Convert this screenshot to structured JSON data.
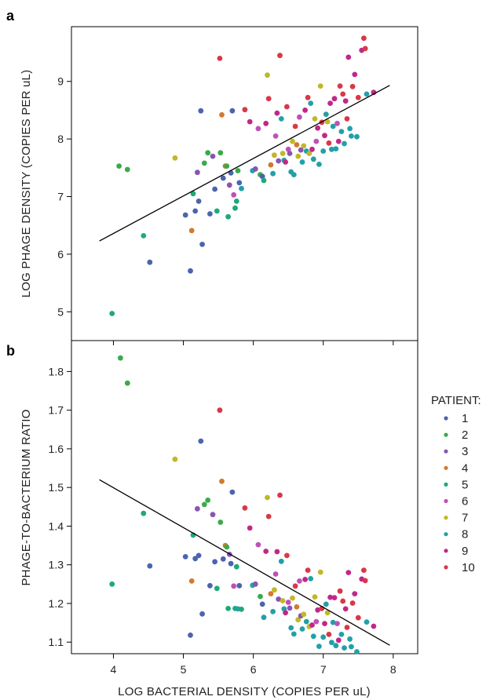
{
  "figure": {
    "panel_a_letter": "a",
    "panel_b_letter": "b",
    "x_axis_title": "LOG BACTERIAL DENSITY (COPIES PER uL)",
    "legend_title": "PATIENT:"
  },
  "patients": [
    {
      "label": "1",
      "color": "#4b64b0"
    },
    {
      "label": "2",
      "color": "#3aaa4a"
    },
    {
      "label": "3",
      "color": "#8a55b0"
    },
    {
      "label": "4",
      "color": "#d07a30"
    },
    {
      "label": "5",
      "color": "#1eaa78"
    },
    {
      "label": "6",
      "color": "#c050b8"
    },
    {
      "label": "7",
      "color": "#c0b828"
    },
    {
      "label": "8",
      "color": "#22a0a8"
    },
    {
      "label": "9",
      "color": "#c02888"
    },
    {
      "label": "10",
      "color": "#d83848"
    }
  ],
  "chart_data": [
    {
      "panel": "a",
      "type": "scatter",
      "ylabel": "LOG PHAGE DENSITY (COPIES PER uL)",
      "xlim": [
        3.4,
        8.35
      ],
      "ylim": [
        4.5,
        9.95
      ],
      "xticks": [
        4,
        5,
        6,
        7,
        8
      ],
      "yticks": [
        5,
        6,
        7,
        8,
        9
      ],
      "show_x_tick_labels": false,
      "trendline": [
        [
          3.8,
          6.23
        ],
        [
          7.95,
          8.93
        ]
      ],
      "points": [
        [
          3.98,
          4.97,
          5
        ],
        [
          4.08,
          7.53,
          2
        ],
        [
          4.2,
          7.47,
          2
        ],
        [
          4.43,
          6.32,
          5
        ],
        [
          4.52,
          5.86,
          1
        ],
        [
          4.88,
          7.67,
          7
        ],
        [
          5.03,
          6.68,
          1
        ],
        [
          5.1,
          5.71,
          1
        ],
        [
          5.12,
          6.41,
          4
        ],
        [
          5.14,
          7.05,
          5
        ],
        [
          5.17,
          6.75,
          1
        ],
        [
          5.2,
          7.42,
          3
        ],
        [
          5.22,
          6.92,
          1
        ],
        [
          5.25,
          8.49,
          1
        ],
        [
          5.27,
          6.17,
          1
        ],
        [
          5.3,
          7.58,
          2
        ],
        [
          5.35,
          7.76,
          2
        ],
        [
          5.38,
          6.7,
          1
        ],
        [
          5.42,
          7.7,
          3
        ],
        [
          5.45,
          7.13,
          1
        ],
        [
          5.48,
          6.75,
          5
        ],
        [
          5.52,
          9.4,
          10
        ],
        [
          5.53,
          7.76,
          2
        ],
        [
          5.55,
          8.42,
          4
        ],
        [
          5.57,
          7.32,
          1
        ],
        [
          5.6,
          7.53,
          4
        ],
        [
          5.62,
          7.53,
          2
        ],
        [
          5.64,
          6.65,
          5
        ],
        [
          5.66,
          7.2,
          3
        ],
        [
          5.68,
          7.41,
          1
        ],
        [
          5.7,
          8.49,
          1
        ],
        [
          5.72,
          7.03,
          6
        ],
        [
          5.74,
          6.8,
          5
        ],
        [
          5.76,
          6.92,
          5
        ],
        [
          5.78,
          7.45,
          2
        ],
        [
          5.8,
          7.24,
          1
        ],
        [
          5.83,
          7.14,
          8
        ],
        [
          5.88,
          8.51,
          10
        ],
        [
          5.95,
          8.3,
          9
        ],
        [
          5.99,
          7.45,
          8
        ],
        [
          6.03,
          7.48,
          3
        ],
        [
          6.07,
          8.18,
          6
        ],
        [
          6.1,
          7.38,
          2
        ],
        [
          6.13,
          7.35,
          1
        ],
        [
          6.15,
          7.28,
          5
        ],
        [
          6.18,
          8.27,
          9
        ],
        [
          6.2,
          9.11,
          7
        ],
        [
          6.22,
          8.7,
          10
        ],
        [
          6.25,
          7.55,
          4
        ],
        [
          6.28,
          7.4,
          8
        ],
        [
          6.3,
          7.72,
          7
        ],
        [
          6.32,
          8.05,
          6
        ],
        [
          6.34,
          8.45,
          9
        ],
        [
          6.36,
          7.62,
          3
        ],
        [
          6.38,
          9.45,
          10
        ],
        [
          6.4,
          8.35,
          8
        ],
        [
          6.42,
          7.75,
          7
        ],
        [
          6.44,
          7.63,
          8
        ],
        [
          6.46,
          7.6,
          9
        ],
        [
          6.48,
          8.56,
          10
        ],
        [
          6.5,
          7.82,
          6
        ],
        [
          6.52,
          7.75,
          3
        ],
        [
          6.54,
          7.43,
          8
        ],
        [
          6.56,
          7.96,
          7
        ],
        [
          6.58,
          7.38,
          8
        ],
        [
          6.6,
          8.22,
          10
        ],
        [
          6.62,
          7.9,
          4
        ],
        [
          6.64,
          7.7,
          7
        ],
        [
          6.66,
          8.38,
          6
        ],
        [
          6.68,
          7.81,
          3
        ],
        [
          6.7,
          7.6,
          8
        ],
        [
          6.72,
          7.88,
          7
        ],
        [
          6.74,
          8.5,
          9
        ],
        [
          6.76,
          7.79,
          8
        ],
        [
          6.78,
          8.72,
          10
        ],
        [
          6.8,
          7.75,
          7
        ],
        [
          6.82,
          8.62,
          8
        ],
        [
          6.84,
          7.82,
          9
        ],
        [
          6.86,
          7.65,
          8
        ],
        [
          6.88,
          8.35,
          7
        ],
        [
          6.9,
          7.96,
          6
        ],
        [
          6.92,
          8.19,
          9
        ],
        [
          6.94,
          7.56,
          8
        ],
        [
          6.96,
          8.92,
          7
        ],
        [
          6.98,
          8.29,
          10
        ],
        [
          7.0,
          7.79,
          8
        ],
        [
          7.02,
          8.06,
          9
        ],
        [
          7.04,
          8.43,
          8
        ],
        [
          7.06,
          8.3,
          7
        ],
        [
          7.08,
          7.93,
          10
        ],
        [
          7.1,
          8.62,
          9
        ],
        [
          7.12,
          7.82,
          8
        ],
        [
          7.14,
          8.22,
          8
        ],
        [
          7.16,
          8.7,
          9
        ],
        [
          7.18,
          7.83,
          8
        ],
        [
          7.2,
          8.27,
          6
        ],
        [
          7.22,
          7.96,
          9
        ],
        [
          7.24,
          8.92,
          10
        ],
        [
          7.26,
          8.13,
          8
        ],
        [
          7.28,
          8.78,
          10
        ],
        [
          7.3,
          7.92,
          8
        ],
        [
          7.32,
          8.66,
          9
        ],
        [
          7.34,
          8.35,
          10
        ],
        [
          7.36,
          9.42,
          9
        ],
        [
          7.38,
          8.18,
          8
        ],
        [
          7.4,
          8.05,
          8
        ],
        [
          7.42,
          8.91,
          10
        ],
        [
          7.45,
          9.12,
          9
        ],
        [
          7.48,
          8.04,
          8
        ],
        [
          7.5,
          8.72,
          10
        ],
        [
          7.55,
          9.54,
          9
        ],
        [
          7.58,
          9.75,
          10
        ],
        [
          7.6,
          9.57,
          10
        ],
        [
          7.62,
          8.78,
          8
        ],
        [
          7.72,
          8.81,
          9
        ]
      ]
    },
    {
      "panel": "b",
      "type": "scatter",
      "ylabel": "PHAGE-TO-BACTERIUM RATIO",
      "xlabel": "LOG BACTERIAL DENSITY (COPIES PER uL)",
      "xlim": [
        3.4,
        8.35
      ],
      "ylim": [
        1.07,
        1.88
      ],
      "xticks": [
        4,
        5,
        6,
        7,
        8
      ],
      "yticks": [
        1.1,
        1.2,
        1.3,
        1.4,
        1.5,
        1.6,
        1.7,
        1.8
      ],
      "ytick_labels": [
        "1.1",
        "1.2",
        "1.3",
        "1.4",
        "1.5",
        "1.6",
        "1.7",
        "1.8"
      ],
      "trendline": [
        [
          3.8,
          1.52
        ],
        [
          7.95,
          1.092
        ]
      ],
      "points": [
        [
          3.98,
          1.25,
          5
        ],
        [
          4.1,
          1.835,
          2
        ],
        [
          4.2,
          1.77,
          2
        ],
        [
          4.43,
          1.433,
          5
        ],
        [
          4.52,
          1.297,
          1
        ],
        [
          4.88,
          1.573,
          7
        ],
        [
          5.03,
          1.321,
          1
        ],
        [
          5.1,
          1.118,
          1
        ],
        [
          5.12,
          1.258,
          4
        ],
        [
          5.14,
          1.377,
          5
        ],
        [
          5.17,
          1.316,
          1
        ],
        [
          5.2,
          1.445,
          3
        ],
        [
          5.22,
          1.324,
          1
        ],
        [
          5.25,
          1.62,
          1
        ],
        [
          5.27,
          1.173,
          1
        ],
        [
          5.3,
          1.456,
          2
        ],
        [
          5.35,
          1.467,
          2
        ],
        [
          5.38,
          1.246,
          1
        ],
        [
          5.42,
          1.43,
          3
        ],
        [
          5.45,
          1.308,
          1
        ],
        [
          5.48,
          1.239,
          5
        ],
        [
          5.52,
          1.7,
          10
        ],
        [
          5.53,
          1.41,
          2
        ],
        [
          5.55,
          1.516,
          4
        ],
        [
          5.57,
          1.315,
          1
        ],
        [
          5.6,
          1.35,
          4
        ],
        [
          5.62,
          1.346,
          2
        ],
        [
          5.64,
          1.187,
          5
        ],
        [
          5.66,
          1.327,
          3
        ],
        [
          5.68,
          1.303,
          1
        ],
        [
          5.7,
          1.488,
          1
        ],
        [
          5.72,
          1.245,
          6
        ],
        [
          5.74,
          1.187,
          5
        ],
        [
          5.76,
          1.295,
          5
        ],
        [
          5.78,
          1.186,
          8
        ],
        [
          5.8,
          1.246,
          1
        ],
        [
          5.83,
          1.185,
          5
        ],
        [
          5.88,
          1.447,
          10
        ],
        [
          5.95,
          1.395,
          9
        ],
        [
          5.99,
          1.247,
          8
        ],
        [
          6.03,
          1.25,
          3
        ],
        [
          6.07,
          1.352,
          6
        ],
        [
          6.1,
          1.218,
          2
        ],
        [
          6.13,
          1.198,
          1
        ],
        [
          6.15,
          1.164,
          8
        ],
        [
          6.18,
          1.335,
          9
        ],
        [
          6.2,
          1.474,
          7
        ],
        [
          6.22,
          1.425,
          10
        ],
        [
          6.25,
          1.225,
          4
        ],
        [
          6.28,
          1.179,
          8
        ],
        [
          6.3,
          1.235,
          7
        ],
        [
          6.32,
          1.276,
          6
        ],
        [
          6.34,
          1.334,
          9
        ],
        [
          6.36,
          1.211,
          3
        ],
        [
          6.38,
          1.48,
          10
        ],
        [
          6.4,
          1.309,
          8
        ],
        [
          6.42,
          1.207,
          7
        ],
        [
          6.44,
          1.186,
          8
        ],
        [
          6.46,
          1.176,
          9
        ],
        [
          6.48,
          1.324,
          10
        ],
        [
          6.5,
          1.203,
          6
        ],
        [
          6.52,
          1.188,
          3
        ],
        [
          6.54,
          1.137,
          8
        ],
        [
          6.56,
          1.214,
          7
        ],
        [
          6.58,
          1.121,
          8
        ],
        [
          6.6,
          1.245,
          10
        ],
        [
          6.62,
          1.191,
          4
        ],
        [
          6.64,
          1.158,
          7
        ],
        [
          6.66,
          1.258,
          6
        ],
        [
          6.68,
          1.168,
          3
        ],
        [
          6.7,
          1.134,
          8
        ],
        [
          6.72,
          1.172,
          7
        ],
        [
          6.74,
          1.262,
          9
        ],
        [
          6.76,
          1.153,
          8
        ],
        [
          6.78,
          1.286,
          10
        ],
        [
          6.8,
          1.14,
          7
        ],
        [
          6.82,
          1.264,
          8
        ],
        [
          6.84,
          1.144,
          9
        ],
        [
          6.86,
          1.115,
          8
        ],
        [
          6.88,
          1.217,
          7
        ],
        [
          6.9,
          1.153,
          6
        ],
        [
          6.92,
          1.183,
          9
        ],
        [
          6.94,
          1.089,
          8
        ],
        [
          6.96,
          1.281,
          7
        ],
        [
          6.98,
          1.187,
          10
        ],
        [
          7.0,
          1.113,
          8
        ],
        [
          7.02,
          1.148,
          9
        ],
        [
          7.04,
          1.198,
          8
        ],
        [
          7.06,
          1.176,
          7
        ],
        [
          7.08,
          1.12,
          10
        ],
        [
          7.1,
          1.216,
          9
        ],
        [
          7.12,
          1.099,
          8
        ],
        [
          7.14,
          1.151,
          8
        ],
        [
          7.16,
          1.215,
          9
        ],
        [
          7.18,
          1.091,
          8
        ],
        [
          7.2,
          1.148,
          6
        ],
        [
          7.22,
          1.105,
          9
        ],
        [
          7.24,
          1.232,
          10
        ],
        [
          7.26,
          1.12,
          8
        ],
        [
          7.28,
          1.206,
          10
        ],
        [
          7.3,
          1.085,
          8
        ],
        [
          7.32,
          1.186,
          9
        ],
        [
          7.34,
          1.138,
          10
        ],
        [
          7.36,
          1.28,
          9
        ],
        [
          7.38,
          1.108,
          8
        ],
        [
          7.4,
          1.088,
          8
        ],
        [
          7.42,
          1.201,
          10
        ],
        [
          7.45,
          1.225,
          9
        ],
        [
          7.48,
          1.075,
          8
        ],
        [
          7.5,
          1.163,
          10
        ],
        [
          7.55,
          1.263,
          9
        ],
        [
          7.58,
          1.286,
          10
        ],
        [
          7.6,
          1.259,
          10
        ],
        [
          7.62,
          1.152,
          8
        ],
        [
          7.72,
          1.141,
          9
        ]
      ]
    }
  ]
}
